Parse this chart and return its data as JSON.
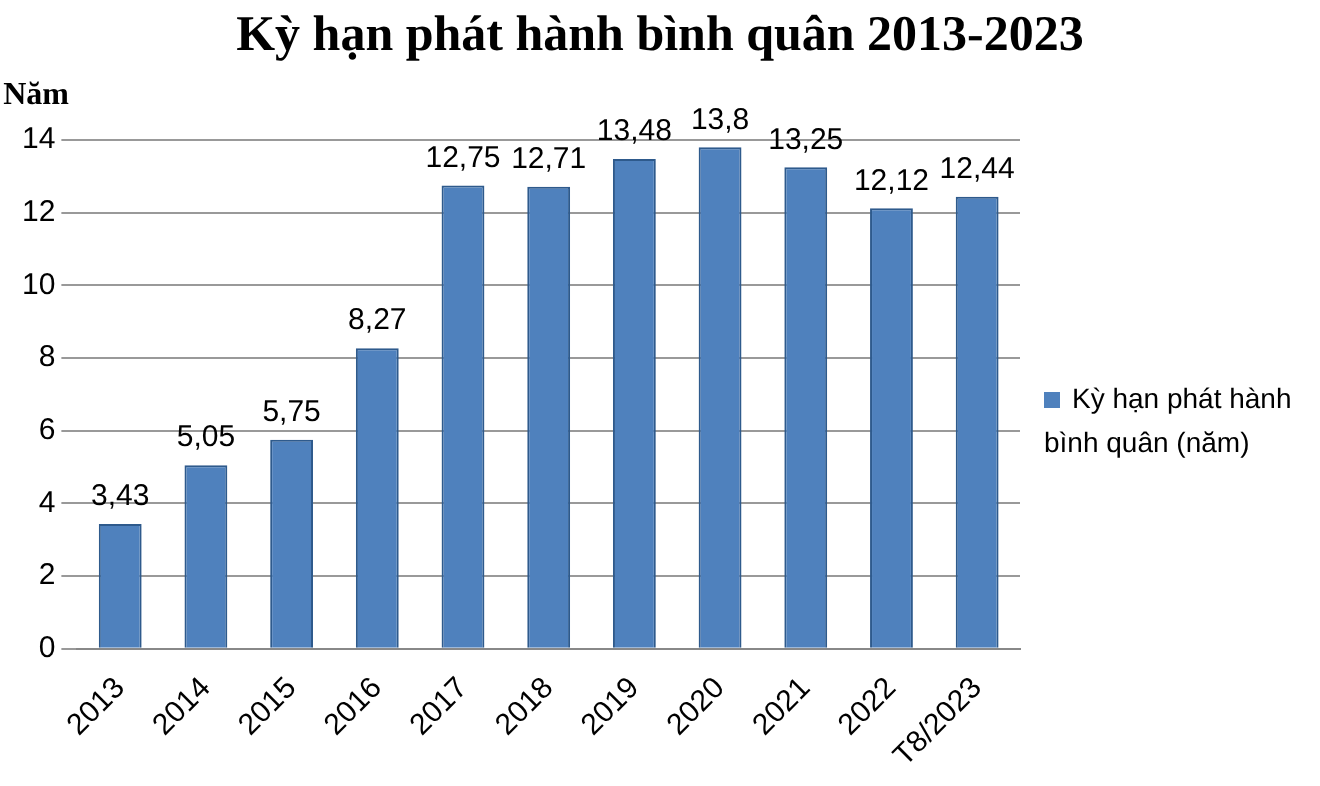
{
  "chart_data": {
    "type": "bar",
    "title": "Kỳ hạn phát hành bình quân 2013-2023",
    "ylabel": "Năm",
    "categories": [
      "2013",
      "2014",
      "2015",
      "2016",
      "2017",
      "2018",
      "2019",
      "2020",
      "2021",
      "2022",
      "T8/2023"
    ],
    "series": [
      {
        "name": "Kỳ hạn phát hành bình quân (năm)",
        "color": "#4f81bd",
        "values": [
          3.43,
          5.05,
          5.75,
          8.27,
          12.75,
          12.71,
          13.48,
          13.8,
          13.25,
          12.12,
          12.44
        ],
        "value_labels": [
          "3,43",
          "5,05",
          "5,75",
          "8,27",
          "12,75",
          "12,71",
          "13,48",
          "13,8",
          "13,25",
          "12,12",
          "12,44"
        ]
      }
    ],
    "ylim": [
      0,
      14
    ],
    "yticks": [
      0,
      2,
      4,
      6,
      8,
      10,
      12,
      14
    ],
    "grid": "y",
    "legend": "right"
  }
}
